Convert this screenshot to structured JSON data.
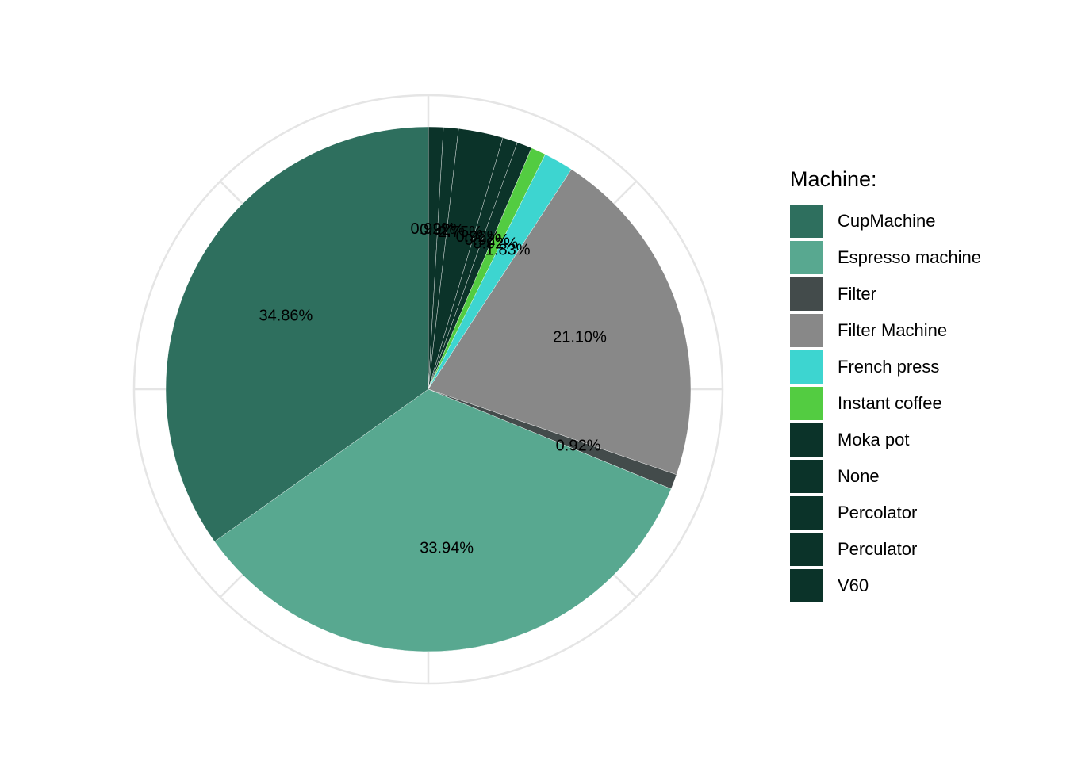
{
  "chart_data": {
    "type": "pie",
    "legend_title": "Machine:",
    "legend_position": "right",
    "grid": true,
    "start_angle": "12 o'clock",
    "direction": "clockwise",
    "slices": [
      {
        "name": "V60",
        "value": 0.92,
        "label": "0.92%",
        "color": "#0B3329"
      },
      {
        "name": "Perculator",
        "value": 0.92,
        "label": "0.92%",
        "color": "#0B3329"
      },
      {
        "name": "Percolator",
        "value": 2.75,
        "label": "2.75%",
        "color": "#0B3329"
      },
      {
        "name": "None",
        "value": 0.92,
        "label": "0.92%",
        "color": "#0B3329"
      },
      {
        "name": "Moka pot",
        "value": 0.92,
        "label": "0.92%",
        "color": "#0B3329"
      },
      {
        "name": "Instant coffee",
        "value": 0.92,
        "label": "0.92%",
        "color": "#53CC41"
      },
      {
        "name": "French press",
        "value": 1.83,
        "label": "1.83%",
        "color": "#3DD5D0"
      },
      {
        "name": "Filter Machine",
        "value": 21.1,
        "label": "21.10%",
        "color": "#888888"
      },
      {
        "name": "Filter",
        "value": 0.92,
        "label": "0.92%",
        "color": "#434B4B"
      },
      {
        "name": "Espresso machine",
        "value": 33.94,
        "label": "33.94%",
        "color": "#58A890"
      },
      {
        "name": "CupMachine",
        "value": 34.86,
        "label": "34.86%",
        "color": "#2E6F5E"
      }
    ],
    "legend_order": [
      "CupMachine",
      "Espresso machine",
      "Filter",
      "Filter Machine",
      "French press",
      "Instant coffee",
      "Moka pot",
      "None",
      "Percolator",
      "Perculator",
      "V60"
    ]
  }
}
